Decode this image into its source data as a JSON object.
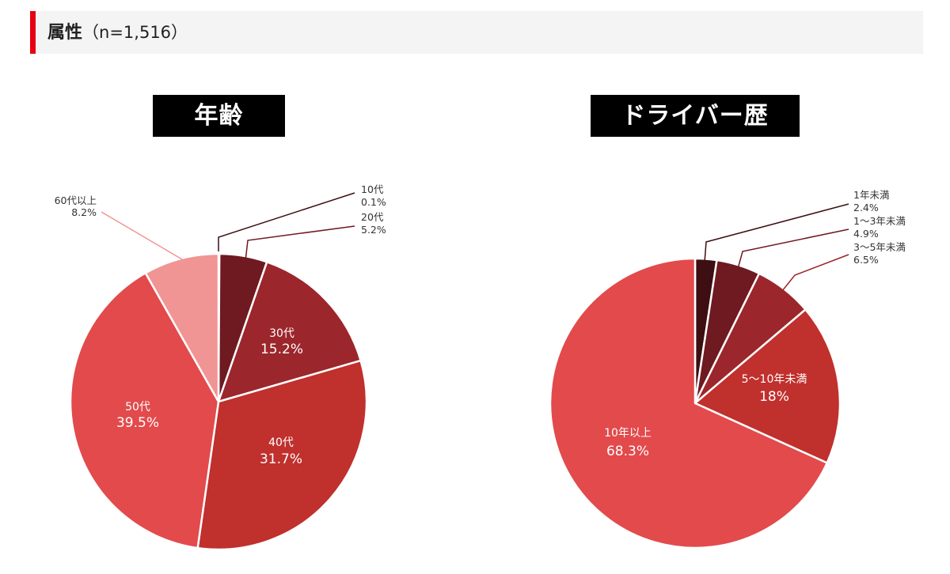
{
  "header": {
    "title": "属性",
    "count": "（n=1,516）",
    "accent_color": "#e60012"
  },
  "chart_data": [
    {
      "type": "pie",
      "title": "年齢",
      "slices": [
        {
          "label": "10代",
          "value": 0.1,
          "value_label": "0.1%",
          "color": "#3d0e12",
          "label_position": "outside"
        },
        {
          "label": "20代",
          "value": 5.2,
          "value_label": "5.2%",
          "color": "#6e1a20",
          "label_position": "outside"
        },
        {
          "label": "30代",
          "value": 15.2,
          "value_label": "15.2%",
          "color": "#9b262c",
          "label_position": "inside"
        },
        {
          "label": "40代",
          "value": 31.7,
          "value_label": "31.7%",
          "color": "#c0302d",
          "label_position": "inside"
        },
        {
          "label": "50代",
          "value": 39.5,
          "value_label": "39.5%",
          "color": "#e24a4c",
          "label_position": "inside"
        },
        {
          "label": "60代以上",
          "value": 8.2,
          "value_label": "8.2%",
          "color": "#f19494",
          "label_position": "outside"
        }
      ]
    },
    {
      "type": "pie",
      "title": "ドライバー歴",
      "slices": [
        {
          "label": "1年未満",
          "value": 2.4,
          "value_label": "2.4%",
          "color": "#3d0e12",
          "label_position": "outside"
        },
        {
          "label": "1〜3年未満",
          "value": 4.9,
          "value_label": "4.9%",
          "color": "#6e1a20",
          "label_position": "outside"
        },
        {
          "label": "3〜5年未満",
          "value": 6.5,
          "value_label": "6.5%",
          "color": "#9b262c",
          "label_position": "outside"
        },
        {
          "label": "5〜10年未満",
          "value": 18,
          "value_label": "18%",
          "color": "#c0302d",
          "label_position": "inside"
        },
        {
          "label": "10年以上",
          "value": 68.3,
          "value_label": "68.3%",
          "color": "#e24a4c",
          "label_position": "inside"
        }
      ]
    }
  ]
}
